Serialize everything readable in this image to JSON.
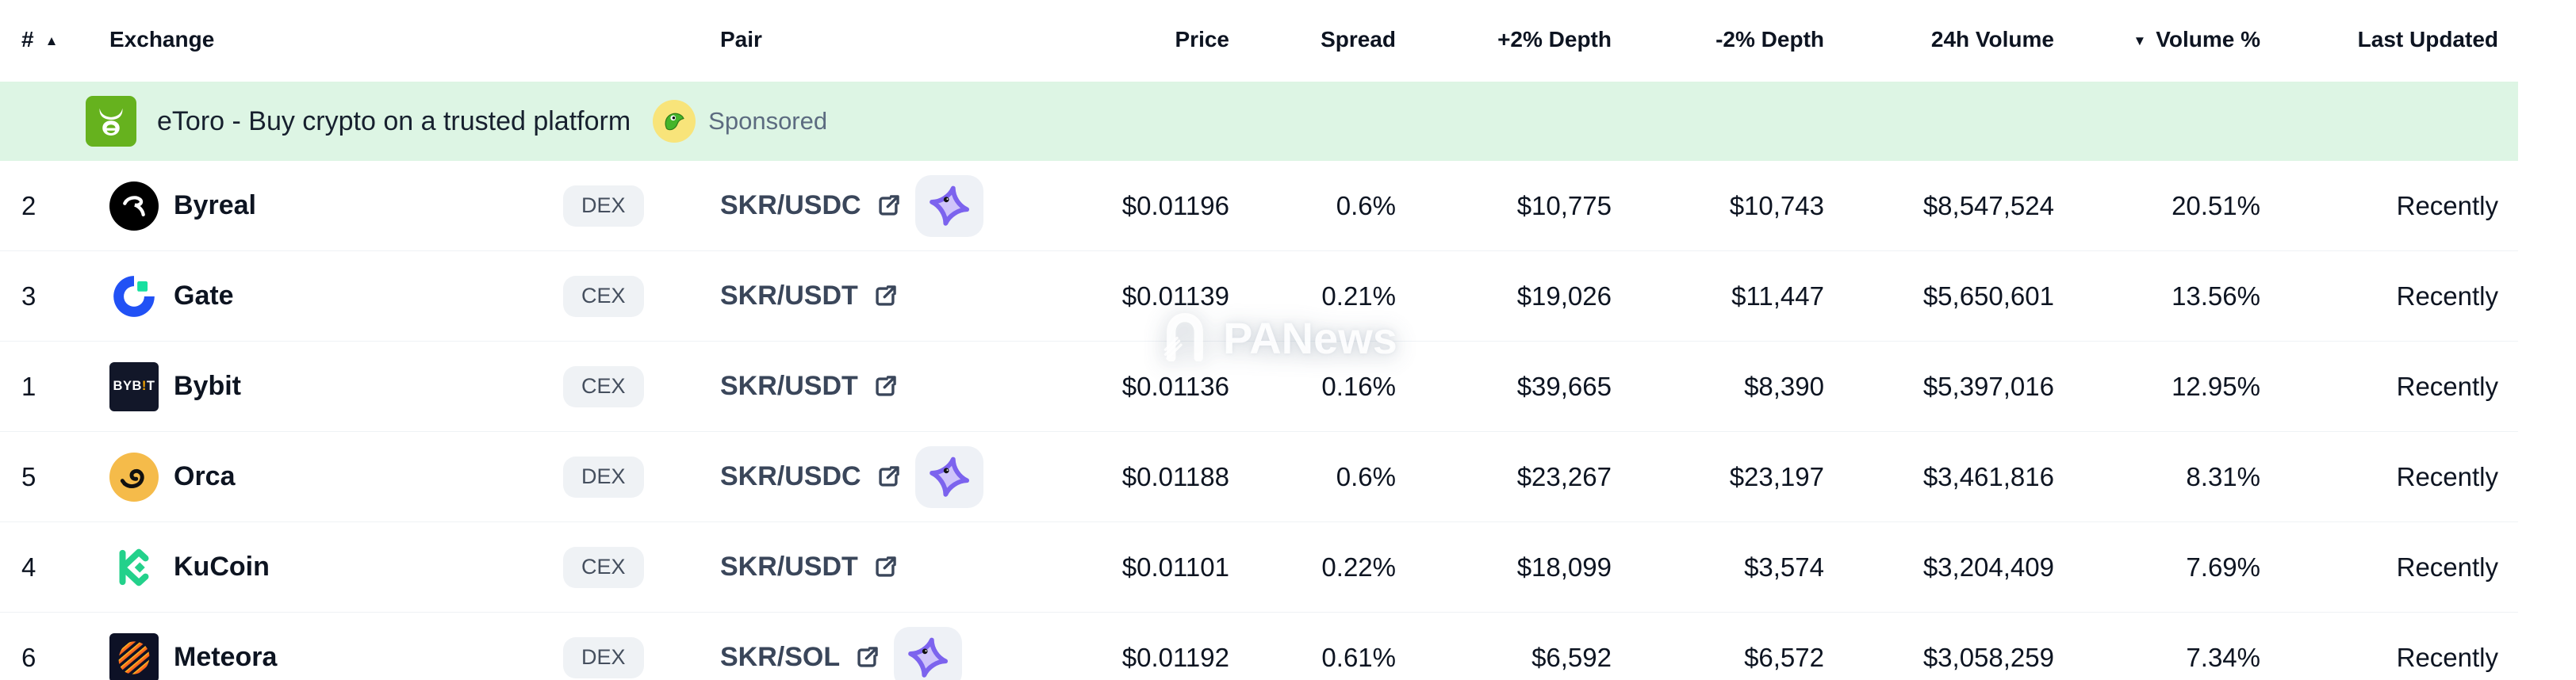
{
  "table": {
    "columns": {
      "rank": {
        "label": "#",
        "sort_icon": "▲"
      },
      "exchange": {
        "label": "Exchange"
      },
      "pair": {
        "label": "Pair"
      },
      "price": {
        "label": "Price"
      },
      "spread": {
        "label": "Spread"
      },
      "depth_plus": {
        "label": "+2% Depth"
      },
      "depth_minus": {
        "label": "-2% Depth"
      },
      "volume_24h": {
        "label": "24h Volume"
      },
      "volume_pct": {
        "label": "Volume %",
        "sort_icon": "▼"
      },
      "last_updated": {
        "label": "Last Updated"
      }
    },
    "rows": [
      {
        "rank": "2",
        "name": "Byreal",
        "logo_icon": "byreal-logo",
        "type_badge": "DEX",
        "pair": "SKR/USDC",
        "has_dex_trade_icon": true,
        "price": "$0.01196",
        "spread": "0.6%",
        "depth_plus": "$10,775",
        "depth_minus": "$10,743",
        "volume_24h": "$8,547,524",
        "volume_pct": "20.51%",
        "last_updated": "Recently"
      },
      {
        "rank": "3",
        "name": "Gate",
        "logo_icon": "gate-logo",
        "type_badge": "CEX",
        "pair": "SKR/USDT",
        "has_dex_trade_icon": false,
        "price": "$0.01139",
        "spread": "0.21%",
        "depth_plus": "$19,026",
        "depth_minus": "$11,447",
        "volume_24h": "$5,650,601",
        "volume_pct": "13.56%",
        "last_updated": "Recently"
      },
      {
        "rank": "1",
        "name": "Bybit",
        "logo_icon": "bybit-logo",
        "type_badge": "CEX",
        "pair": "SKR/USDT",
        "has_dex_trade_icon": false,
        "logo_text": "BYB!T",
        "price": "$0.01136",
        "spread": "0.16%",
        "depth_plus": "$39,665",
        "depth_minus": "$8,390",
        "volume_24h": "$5,397,016",
        "volume_pct": "12.95%",
        "last_updated": "Recently"
      },
      {
        "rank": "5",
        "name": "Orca",
        "logo_icon": "orca-logo",
        "type_badge": "DEX",
        "pair": "SKR/USDC",
        "has_dex_trade_icon": true,
        "price": "$0.01188",
        "spread": "0.6%",
        "depth_plus": "$23,267",
        "depth_minus": "$23,197",
        "volume_24h": "$3,461,816",
        "volume_pct": "8.31%",
        "last_updated": "Recently"
      },
      {
        "rank": "4",
        "name": "KuCoin",
        "logo_icon": "kucoin-logo",
        "type_badge": "CEX",
        "pair": "SKR/USDT",
        "has_dex_trade_icon": false,
        "price": "$0.01101",
        "spread": "0.22%",
        "depth_plus": "$18,099",
        "depth_minus": "$3,574",
        "volume_24h": "$3,204,409",
        "volume_pct": "7.69%",
        "last_updated": "Recently"
      },
      {
        "rank": "6",
        "name": "Meteora",
        "logo_icon": "meteora-logo",
        "type_badge": "DEX",
        "pair": "SKR/SOL",
        "has_dex_trade_icon": true,
        "price": "$0.01192",
        "spread": "0.61%",
        "depth_plus": "$6,592",
        "depth_minus": "$6,572",
        "volume_24h": "$3,058,259",
        "volume_pct": "7.34%",
        "last_updated": "Recently"
      }
    ]
  },
  "sponsor": {
    "text": "eToro - Buy crypto on a trusted platform",
    "label": "Sponsored",
    "logo_icon": "etoro-bull-icon",
    "mascot_icon": "lizard-icon"
  },
  "watermark": {
    "text": "PANews",
    "logo_icon": "panews-logo-icon"
  },
  "icons": {
    "sort_ascending": "▲",
    "sort_descending": "▼",
    "pair_external_link": "external-link-icon",
    "dex_trade": "purple-gem-icon"
  },
  "colors": {
    "text": "#0d1421",
    "pair_text": "#3a465a",
    "badge_bg": "#eff2f5",
    "badge_text": "#454f5e",
    "row_border": "#eff2f5",
    "sponsor_bg": "#ddf5e4",
    "sponsor_label_text": "#5c6b80",
    "etoro_green": "#66b21e",
    "mascot_yellow": "#f8e47a",
    "purple_accent": "#7c63ee",
    "purple_light": "#cfc4fa",
    "gate_blue": "#2151f5",
    "gate_green": "#17e0a0",
    "orca_yellow": "#f5bb4a",
    "kucoin_green": "#23d18b",
    "bybit_dark": "#121729",
    "bybit_accent": "#f7a600",
    "meteora_dark": "#0d1126",
    "meteora_orange": "#ff6a1f"
  }
}
